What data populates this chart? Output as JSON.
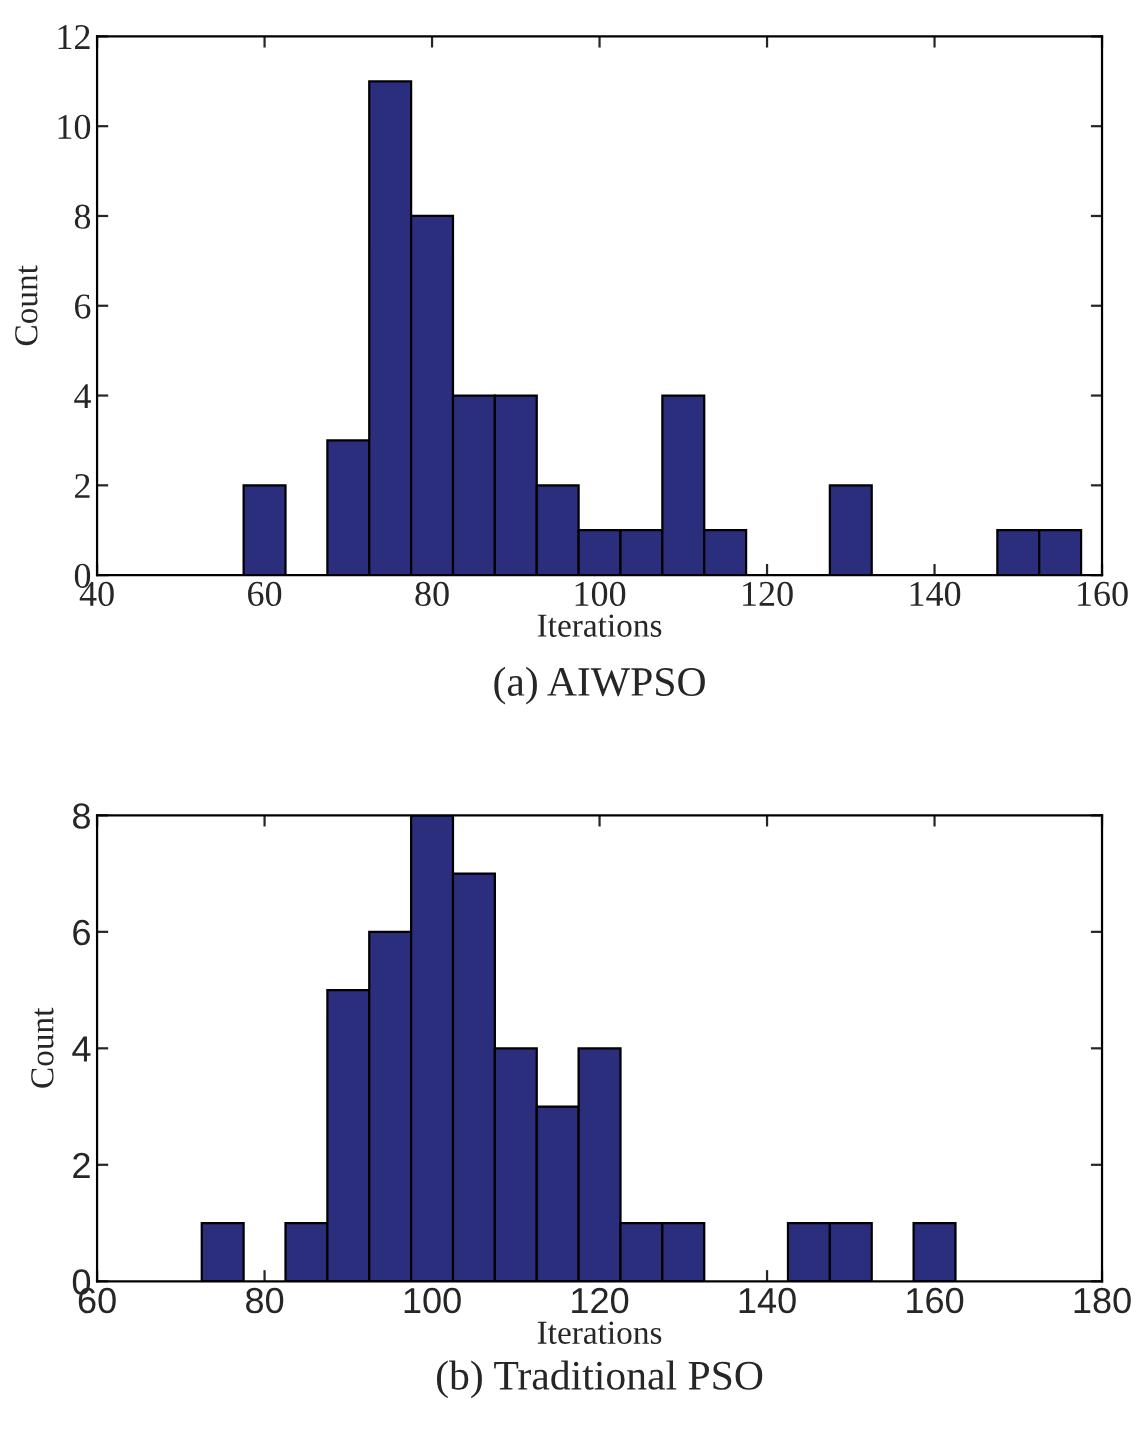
{
  "chart_data": [
    {
      "type": "histogram",
      "title": "(a) AIWPSO",
      "xlabel": "Iterations",
      "ylabel": "Count",
      "color": "#2b2d7d",
      "bins": [
        57.5,
        62.5,
        67.5,
        72.5,
        77.5,
        82.5,
        87.5,
        92.5,
        97.5,
        102.5,
        107.5,
        112.5,
        117.5,
        122.5,
        127.5,
        132.5,
        137.5,
        142.5,
        147.5,
        152.5,
        157.5
      ],
      "values": [
        2,
        0,
        3,
        11,
        8,
        4,
        4,
        2,
        1,
        1,
        4,
        1,
        0,
        0,
        2,
        0,
        0,
        0,
        1,
        1
      ],
      "xlim": [
        40,
        160
      ],
      "xticks": [
        40,
        60,
        80,
        100,
        120,
        140,
        160
      ],
      "ylim": [
        0,
        12
      ],
      "yticks": [
        0,
        2,
        4,
        6,
        8,
        10,
        12
      ],
      "grid": false
    },
    {
      "type": "histogram",
      "title": "(b) Traditional PSO",
      "xlabel": "Iterations",
      "ylabel": "Count",
      "color": "#2b2d7d",
      "bins": [
        72.5,
        77.5,
        82.5,
        87.5,
        92.5,
        97.5,
        102.5,
        107.5,
        112.5,
        117.5,
        122.5,
        127.5,
        132.5,
        137.5,
        142.5,
        147.5,
        152.5,
        157.5,
        162.5
      ],
      "values": [
        1,
        0,
        1,
        5,
        6,
        8,
        7,
        4,
        3,
        4,
        1,
        1,
        0,
        0,
        1,
        1,
        0,
        1
      ],
      "xlim": [
        60,
        180
      ],
      "xticks": [
        60,
        80,
        100,
        120,
        140,
        160,
        180
      ],
      "ylim": [
        0,
        8
      ],
      "yticks": [
        0,
        2,
        4,
        6,
        8
      ],
      "grid": false
    }
  ]
}
